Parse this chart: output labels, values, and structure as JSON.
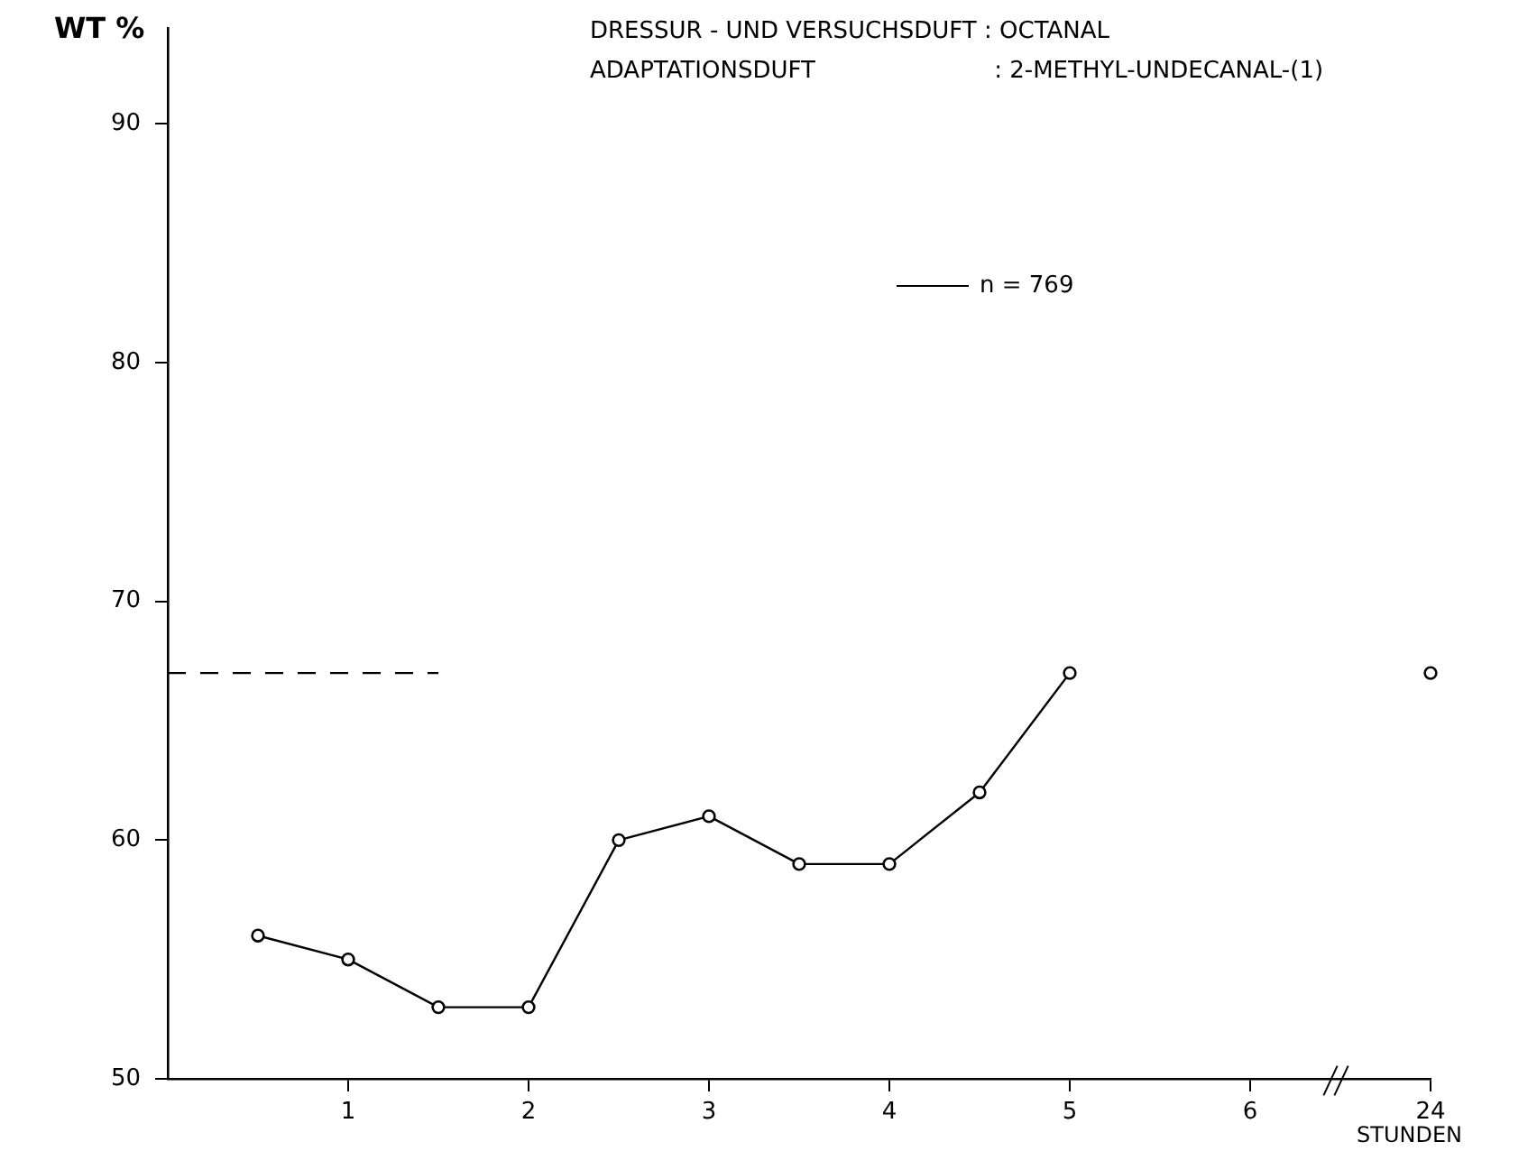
{
  "chart_data": {
    "type": "line",
    "ylabel": "WT %",
    "xlabel": "STUNDEN",
    "annotations": [
      "DRESSUR - UND VERSUCHSDUFT : OCTANAL",
      "ADAPTATIONSDUFT                        : 2-METHYL-UNDECANAL-(1)"
    ],
    "categories": [
      null,
      null,
      "1",
      null,
      "2",
      null,
      "3",
      null,
      "4",
      null,
      "5",
      null,
      "6",
      null,
      "24"
    ],
    "series": [
      {
        "name": "n = 769",
        "color": "#000000",
        "marker": "circle",
        "line_style": "solid",
        "values": [
          null,
          56,
          55,
          53,
          53,
          60,
          61,
          59,
          59,
          62,
          67,
          null,
          null,
          null,
          67
        ]
      },
      {
        "color": "#000000",
        "marker": "none",
        "line_style": "dashed",
        "values": [
          67,
          67,
          67,
          67,
          null,
          null,
          null,
          null,
          null,
          null,
          null,
          null,
          null,
          null,
          null
        ]
      }
    ],
    "ylim": [
      50,
      94
    ],
    "yticks": [
      50,
      60,
      70,
      80,
      90
    ],
    "grid": false,
    "legend": "top right"
  }
}
